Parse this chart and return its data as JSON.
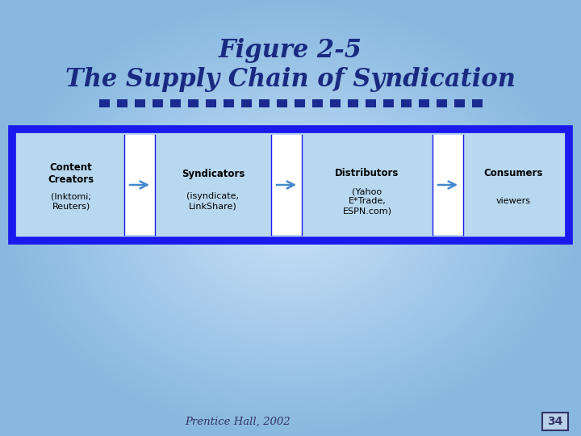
{
  "title_line1": "Figure 2-5",
  "title_line2": "The Supply Chain of Syndication",
  "title_color": "#1a2a80",
  "background_color_center": "#c8e0f8",
  "background_color_edge": "#8ab8e0",
  "box_border_color": "#1a1aee",
  "box_fill_color": "#b8d8f0",
  "white_strip_color": "#ffffff",
  "arrow_color": "#4488cc",
  "dot_color": "#1a2a90",
  "footer_text": "Prentice Hall, 2002",
  "page_number": "34",
  "title_fontsize": 22,
  "boxes": [
    {
      "label_bold": "Content\nCreators",
      "label_normal": "(Inktomi;\nReuters)"
    },
    {
      "label_bold": "Syndicators",
      "label_normal": "(isyndicate,\nLinkShare)"
    },
    {
      "label_bold": "Distributors",
      "label_normal": "(Yahoo\nE*Trade,\nESPN.com)"
    },
    {
      "label_bold": "Consumers",
      "label_normal": "viewers"
    }
  ]
}
